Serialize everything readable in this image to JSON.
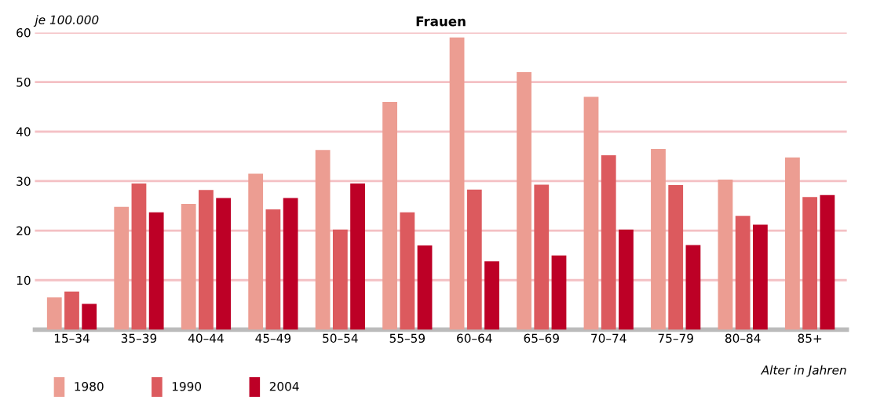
{
  "chart_data": {
    "type": "bar",
    "title": "Frauen",
    "ylabel": "je 100.000",
    "xlabel": "Alter in Jahren",
    "categories": [
      "15–34",
      "35–39",
      "40–44",
      "45–49",
      "50–54",
      "55–59",
      "60–64",
      "65–69",
      "70–74",
      "75–79",
      "80–84",
      "85+"
    ],
    "series": [
      {
        "name": "1980",
        "color": "#ec9d92",
        "values": [
          6.5,
          24.8,
          25.4,
          31.5,
          36.3,
          46,
          59,
          52,
          47,
          36.5,
          30.3,
          34.8
        ]
      },
      {
        "name": "1990",
        "color": "#dc5a5e",
        "values": [
          7.7,
          29.5,
          28.2,
          24.3,
          20.2,
          23.7,
          28.3,
          29.3,
          35.2,
          29.2,
          23,
          26.8
        ]
      },
      {
        "name": "2004",
        "color": "#bd0026",
        "values": [
          5.2,
          23.7,
          26.6,
          26.6,
          29.5,
          17,
          13.8,
          15,
          20.2,
          17.1,
          21.2,
          27.2
        ]
      }
    ],
    "ylim": [
      0,
      60
    ],
    "yticks": [
      {
        "value": 0,
        "label": null
      },
      10,
      20,
      30,
      40,
      50,
      60
    ],
    "grid": "y",
    "legend": "bottom left"
  }
}
